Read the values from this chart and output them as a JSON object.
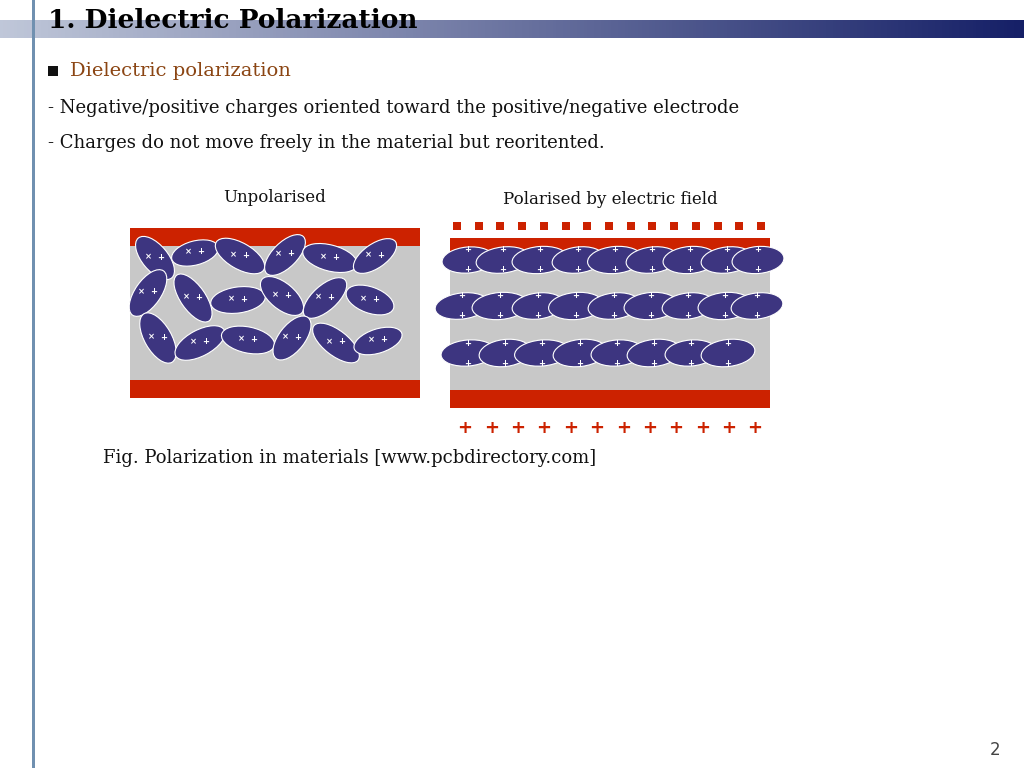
{
  "title": "1. Dielectric Polarization",
  "bullet_text": "Dielectric polarization",
  "bullet_color": "#8B4513",
  "line1": "- Negative/positive charges oriented toward the positive/negative electrode",
  "line2": "- Charges do not move freely in the material but reoritented.",
  "fig_caption": "Fig. Polarization in materials [www.pcbdirectory.com]",
  "unpolarised_label": "Unpolarised",
  "polarised_label": "Polarised by electric field",
  "bg_color": "#ffffff",
  "title_color": "#000000",
  "body_text_color": "#111111",
  "electrode_color": "#cc2200",
  "dielectric_color": "#c8c8c8",
  "ellipse_fill": "#3d3580",
  "page_number": "2",
  "left_line_color": "#6080a0"
}
